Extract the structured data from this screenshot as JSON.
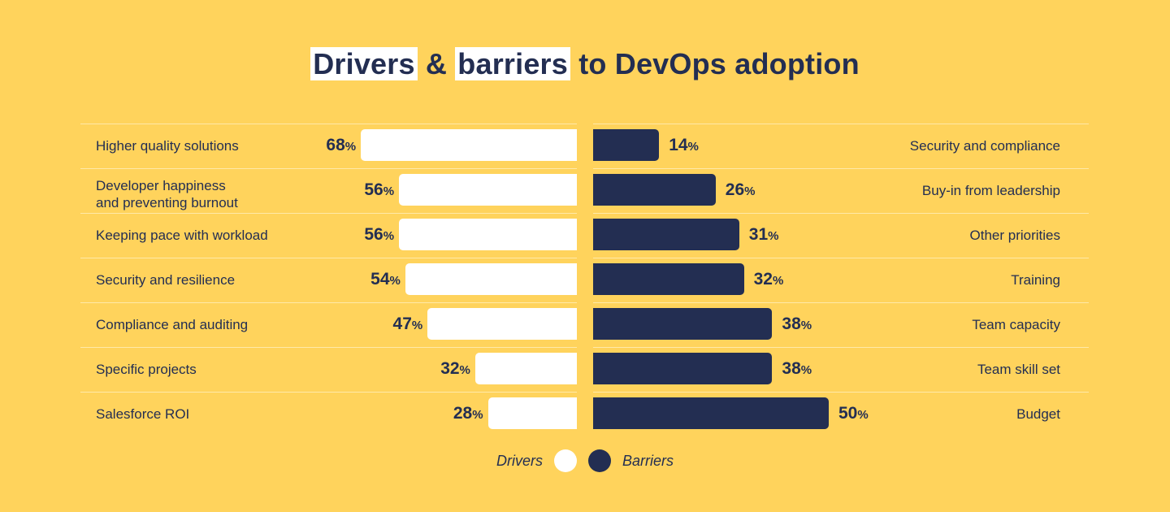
{
  "title_parts": {
    "drivers": "Drivers",
    "amp": "&",
    "barriers": "barriers",
    "rest": "to DevOps adoption"
  },
  "chart_data": {
    "type": "bar",
    "orientation": "horizontal-diverging",
    "title": "Drivers & barriers to DevOps adoption",
    "unit": "%",
    "colors": {
      "drivers": "#FFFFFF",
      "barriers": "#232E52",
      "background": "#FFD35C"
    },
    "legend_placement": "bottom",
    "series": [
      {
        "name": "Drivers",
        "categories": [
          "Higher quality solutions",
          "Developer happiness\nand preventing burnout",
          "Keeping pace with workload",
          "Security and resilience",
          "Compliance and auditing",
          "Specific projects",
          "Salesforce ROI"
        ],
        "values": [
          68,
          56,
          56,
          54,
          47,
          32,
          28
        ]
      },
      {
        "name": "Barriers",
        "categories": [
          "Security and compliance",
          "Buy-in from leadership",
          "Other priorities",
          "Training",
          "Team capacity",
          "Team skill set",
          "Budget"
        ],
        "values": [
          14,
          26,
          31,
          32,
          38,
          38,
          50
        ]
      }
    ]
  },
  "legend": {
    "drivers": "Drivers",
    "barriers": "Barriers"
  }
}
